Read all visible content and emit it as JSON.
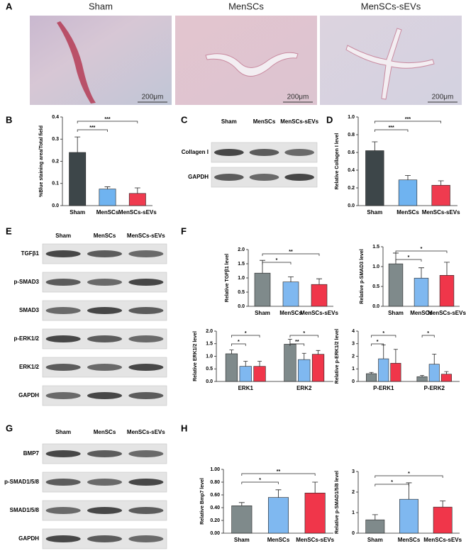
{
  "panel_letters": [
    "A",
    "B",
    "C",
    "D",
    "E",
    "F",
    "G",
    "H"
  ],
  "histology": {
    "images": [
      {
        "label": "Sham",
        "scale_bar": "200μm"
      },
      {
        "label": "MenSCs",
        "scale_bar": "200μm"
      },
      {
        "label": "MenSCs-sEVs",
        "scale_bar": "200μm"
      }
    ]
  },
  "blots": [
    {
      "lanes": [
        "Sham",
        "MenSCs",
        "MenSCs-sEVs"
      ],
      "rows": [
        "Collagen I",
        "GAPDH"
      ]
    },
    {
      "lanes": [
        "Sham",
        "MenSCs",
        "MenSCs-sEVs"
      ],
      "rows": [
        "TGFβ1",
        "p-SMAD3",
        "SMAD3",
        "p-ERK1/2",
        "ERK1/2",
        "GAPDH"
      ]
    },
    {
      "lanes": [
        "Sham",
        "MenSCs",
        "MenSCs-sEVs"
      ],
      "rows": [
        "BMP7",
        "p-SMAD1/5/8",
        "SMAD1/5/8",
        "GAPDH"
      ]
    }
  ],
  "chart_data": [
    {
      "type": "bar",
      "ylabel": "%Blue staining area/Total field",
      "categories": [
        "Sham",
        "MenSCs",
        "MenSCs-sEVs"
      ],
      "values": [
        0.24,
        0.075,
        0.055
      ],
      "errors": [
        0.07,
        0.01,
        0.025
      ],
      "colors": [
        "#3d4649",
        "#6fb3f0",
        "#ef3b4f"
      ],
      "ylim": [
        0,
        0.4
      ],
      "yticks": [
        {
          "value": 0,
          "label": "0.0"
        },
        0.1,
        0.2,
        0.3,
        0.4
      ],
      "significance": [
        {
          "from": 0,
          "to": 1,
          "label": "***"
        },
        {
          "from": 0,
          "to": 2,
          "label": "***"
        }
      ]
    },
    {
      "type": "bar",
      "ylabel": "Relative Collagen I level",
      "categories": [
        "Sham",
        "MenSCs",
        "MenSCs-sEVs"
      ],
      "values": [
        0.62,
        0.29,
        0.23
      ],
      "errors": [
        0.1,
        0.05,
        0.05
      ],
      "colors": [
        "#3d4649",
        "#6fb3f0",
        "#ef3b4f"
      ],
      "ylim": [
        0,
        1
      ],
      "yticks": [
        {
          "value": 0,
          "label": "0.0"
        },
        0.2,
        0.4,
        0.6,
        0.8,
        {
          "value": 1,
          "label": "1.0"
        }
      ],
      "significance": [
        {
          "from": 0,
          "to": 1,
          "label": "***"
        },
        {
          "from": 0,
          "to": 2,
          "label": "***"
        }
      ]
    },
    {
      "type": "bar",
      "ylabel": "Relative TGFβ1 level",
      "categories": [
        "Sham",
        "MenSCs",
        "MenSCs-sEVs"
      ],
      "values": [
        1.17,
        0.86,
        0.77
      ],
      "errors": [
        0.45,
        0.18,
        0.2
      ],
      "colors": [
        "#7f8a8b",
        "#7fb8f0",
        "#f0364a"
      ],
      "ylim": [
        0,
        2
      ],
      "yticks": [
        {
          "value": 0,
          "label": "0.0"
        },
        0.5,
        {
          "value": 1,
          "label": "1.0"
        },
        1.5,
        {
          "value": 2,
          "label": "2.0"
        }
      ],
      "significance": [
        {
          "from": 0,
          "to": 1,
          "label": "*"
        },
        {
          "from": 0,
          "to": 2,
          "label": "**"
        }
      ]
    },
    {
      "type": "bar",
      "ylabel": "Relative p-SMAD3 level",
      "categories": [
        "Sham",
        "MenSCs",
        "MenSCs-sEVs"
      ],
      "values": [
        1.07,
        0.71,
        0.78
      ],
      "errors": [
        0.27,
        0.26,
        0.33
      ],
      "colors": [
        "#7f8a8b",
        "#7fb8f0",
        "#f0364a"
      ],
      "ylim": [
        0,
        1.5
      ],
      "yticks": [
        {
          "value": 0,
          "label": "0.0"
        },
        0.5,
        {
          "value": 1,
          "label": "1.0"
        },
        1.5
      ],
      "significance": [
        {
          "from": 0,
          "to": 1,
          "label": "*"
        },
        {
          "from": 0,
          "to": 2,
          "label": "*"
        }
      ]
    },
    {
      "type": "grouped_bar",
      "ylabel": "Relative ERK1/2 level",
      "categories": [
        "ERK1",
        "ERK2"
      ],
      "series": [
        {
          "color": "#7f8a8b",
          "values": [
            1.1,
            1.48
          ],
          "errors": [
            0.15,
            0.2
          ]
        },
        {
          "color": "#7fb8f0",
          "values": [
            0.6,
            0.87
          ],
          "errors": [
            0.2,
            0.25
          ]
        },
        {
          "color": "#f0364a",
          "values": [
            0.6,
            1.08
          ],
          "errors": [
            0.2,
            0.15
          ]
        }
      ],
      "ylim": [
        0,
        2
      ],
      "yticks": [
        {
          "value": 0,
          "label": "0.0"
        },
        0.5,
        {
          "value": 1,
          "label": "1.0"
        },
        1.5,
        {
          "value": 2,
          "label": "2.0"
        }
      ],
      "significance": [
        {
          "category": 0,
          "from": 0,
          "to": 1,
          "label": "*"
        },
        {
          "category": 0,
          "from": 0,
          "to": 2,
          "label": "*"
        },
        {
          "category": 1,
          "from": 0,
          "to": 1,
          "label": "**"
        },
        {
          "category": 1,
          "from": 0,
          "to": 2,
          "label": "*"
        }
      ]
    },
    {
      "type": "grouped_bar",
      "ylabel": "Relative p-ERK1/2 level",
      "categories": [
        "P-ERK1",
        "P-ERK2"
      ],
      "series": [
        {
          "color": "#7f8a8b",
          "values": [
            0.62,
            0.38
          ],
          "errors": [
            0.1,
            0.1
          ]
        },
        {
          "color": "#7fb8f0",
          "values": [
            1.8,
            1.37
          ],
          "errors": [
            1.1,
            0.8
          ]
        },
        {
          "color": "#f0364a",
          "values": [
            1.45,
            0.58
          ],
          "errors": [
            1.1,
            0.2
          ]
        }
      ],
      "ylim": [
        0,
        4
      ],
      "yticks": [
        0,
        1,
        2,
        3,
        4
      ],
      "significance": [
        {
          "category": 0,
          "from": 0,
          "to": 1,
          "label": "*"
        },
        {
          "category": 0,
          "from": 0,
          "to": 2,
          "label": "*"
        },
        {
          "category": 1,
          "from": 0,
          "to": 1,
          "label": "*"
        }
      ]
    },
    {
      "type": "bar",
      "ylabel": "Relative Bmp7 level",
      "categories": [
        "Sham",
        "MenSCs",
        "MenSCs-sEVs"
      ],
      "values": [
        0.43,
        0.56,
        0.63
      ],
      "errors": [
        0.05,
        0.12,
        0.17
      ],
      "colors": [
        "#7f8a8b",
        "#7fb8f0",
        "#f0364a"
      ],
      "ylim": [
        0,
        1
      ],
      "yticks": [
        {
          "value": 0,
          "label": "0.00"
        },
        {
          "value": 0.2,
          "label": "0.20"
        },
        {
          "value": 0.4,
          "label": "0.40"
        },
        {
          "value": 0.6,
          "label": "0.60"
        },
        {
          "value": 0.8,
          "label": "0.80"
        },
        {
          "value": 1,
          "label": "1.00"
        }
      ],
      "significance": [
        {
          "from": 0,
          "to": 1,
          "label": "*"
        },
        {
          "from": 0,
          "to": 2,
          "label": "**"
        }
      ]
    },
    {
      "type": "bar",
      "ylabel": "Relative p-SMAD1/5/8 level",
      "categories": [
        "Sham",
        "MenSCs",
        "MenSCs-sEVs"
      ],
      "values": [
        0.65,
        1.65,
        1.27
      ],
      "errors": [
        0.25,
        0.8,
        0.3
      ],
      "colors": [
        "#7f8a8b",
        "#7fb8f0",
        "#f0364a"
      ],
      "ylim": [
        0,
        3
      ],
      "yticks": [
        0,
        1,
        2,
        3
      ],
      "significance": [
        {
          "from": 0,
          "to": 1,
          "label": "*"
        },
        {
          "from": 0,
          "to": 2,
          "label": "*"
        }
      ]
    }
  ]
}
